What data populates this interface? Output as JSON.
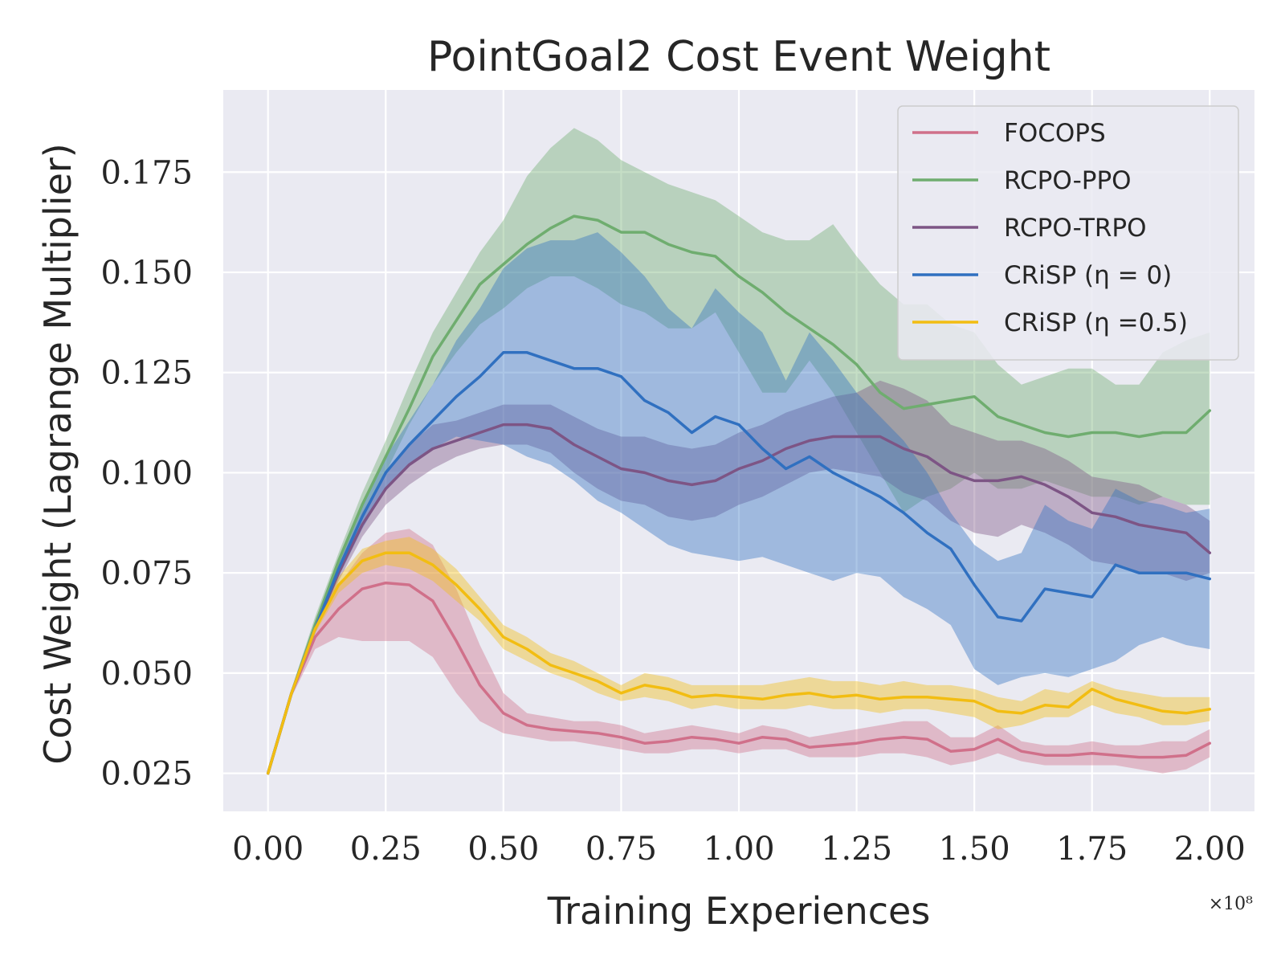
{
  "chart_data": {
    "type": "line",
    "title": "PointGoal2 Cost Event Weight",
    "xlabel": "Training Experiences",
    "ylabel": "Cost Weight (Lagrange Multiplier)",
    "x_offset_label": "×10⁸",
    "xlim": [
      -0.095,
      2.095
    ],
    "ylim": [
      0.0155,
      0.1955
    ],
    "xticks": [
      0.0,
      0.25,
      0.5,
      0.75,
      1.0,
      1.25,
      1.5,
      1.75,
      2.0
    ],
    "xtick_labels": [
      "0.00",
      "0.25",
      "0.50",
      "0.75",
      "1.00",
      "1.25",
      "1.50",
      "1.75",
      "2.00"
    ],
    "yticks": [
      0.025,
      0.05,
      0.075,
      0.1,
      0.125,
      0.15,
      0.175
    ],
    "ytick_labels": [
      "0.025",
      "0.050",
      "0.075",
      "0.100",
      "0.125",
      "0.150",
      "0.175"
    ],
    "grid": true,
    "legend_position": "top-right",
    "series": [
      {
        "name": "FOCOPS",
        "color": "#d0708a",
        "x": [
          0.0,
          0.05,
          0.1,
          0.15,
          0.2,
          0.25,
          0.3,
          0.35,
          0.4,
          0.45,
          0.5,
          0.55,
          0.6,
          0.65,
          0.7,
          0.75,
          0.8,
          0.85,
          0.9,
          0.95,
          1.0,
          1.05,
          1.1,
          1.15,
          1.2,
          1.25,
          1.3,
          1.35,
          1.4,
          1.45,
          1.5,
          1.55,
          1.6,
          1.65,
          1.7,
          1.75,
          1.8,
          1.85,
          1.9,
          1.95,
          2.0
        ],
        "y": [
          0.025,
          0.045,
          0.059,
          0.066,
          0.071,
          0.0725,
          0.072,
          0.068,
          0.058,
          0.047,
          0.04,
          0.037,
          0.036,
          0.0355,
          0.035,
          0.034,
          0.0325,
          0.033,
          0.034,
          0.0335,
          0.0325,
          0.034,
          0.0335,
          0.0315,
          0.032,
          0.0325,
          0.0335,
          0.034,
          0.0335,
          0.0305,
          0.031,
          0.0335,
          0.0305,
          0.0295,
          0.0295,
          0.03,
          0.0295,
          0.029,
          0.029,
          0.0295,
          0.0325
        ],
        "lower": [
          0.025,
          0.044,
          0.056,
          0.059,
          0.058,
          0.058,
          0.058,
          0.054,
          0.045,
          0.038,
          0.035,
          0.034,
          0.033,
          0.033,
          0.032,
          0.031,
          0.03,
          0.03,
          0.031,
          0.031,
          0.03,
          0.031,
          0.031,
          0.029,
          0.029,
          0.029,
          0.03,
          0.03,
          0.029,
          0.027,
          0.028,
          0.03,
          0.028,
          0.027,
          0.027,
          0.027,
          0.027,
          0.026,
          0.025,
          0.026,
          0.029
        ],
        "upper": [
          0.025,
          0.046,
          0.062,
          0.072,
          0.08,
          0.085,
          0.086,
          0.082,
          0.071,
          0.057,
          0.045,
          0.04,
          0.039,
          0.038,
          0.038,
          0.037,
          0.035,
          0.036,
          0.037,
          0.036,
          0.035,
          0.037,
          0.036,
          0.034,
          0.035,
          0.036,
          0.037,
          0.038,
          0.038,
          0.034,
          0.034,
          0.037,
          0.033,
          0.032,
          0.032,
          0.033,
          0.032,
          0.032,
          0.033,
          0.033,
          0.036
        ]
      },
      {
        "name": "RCPO-PPO",
        "color": "#6fad6f",
        "x": [
          0.0,
          0.05,
          0.1,
          0.15,
          0.2,
          0.25,
          0.3,
          0.35,
          0.4,
          0.45,
          0.5,
          0.55,
          0.6,
          0.65,
          0.7,
          0.75,
          0.8,
          0.85,
          0.9,
          0.95,
          1.0,
          1.05,
          1.1,
          1.15,
          1.2,
          1.25,
          1.3,
          1.35,
          1.4,
          1.45,
          1.5,
          1.55,
          1.6,
          1.65,
          1.7,
          1.75,
          1.8,
          1.85,
          1.9,
          1.95,
          2.0
        ],
        "y": [
          0.025,
          0.045,
          0.062,
          0.078,
          0.092,
          0.104,
          0.116,
          0.129,
          0.138,
          0.147,
          0.152,
          0.157,
          0.161,
          0.164,
          0.163,
          0.16,
          0.16,
          0.157,
          0.155,
          0.154,
          0.149,
          0.145,
          0.14,
          0.136,
          0.132,
          0.127,
          0.12,
          0.116,
          0.117,
          0.118,
          0.119,
          0.114,
          0.112,
          0.11,
          0.109,
          0.11,
          0.11,
          0.109,
          0.11,
          0.11,
          0.1155
        ],
        "lower": [
          0.025,
          0.045,
          0.061,
          0.076,
          0.089,
          0.1,
          0.112,
          0.122,
          0.13,
          0.137,
          0.141,
          0.146,
          0.149,
          0.149,
          0.146,
          0.142,
          0.14,
          0.136,
          0.136,
          0.14,
          0.13,
          0.12,
          0.12,
          0.128,
          0.12,
          0.11,
          0.1,
          0.09,
          0.094,
          0.096,
          0.1,
          0.096,
          0.096,
          0.098,
          0.096,
          0.094,
          0.094,
          0.092,
          0.094,
          0.092,
          0.092
        ],
        "upper": [
          0.025,
          0.046,
          0.064,
          0.08,
          0.095,
          0.108,
          0.122,
          0.135,
          0.145,
          0.155,
          0.163,
          0.174,
          0.181,
          0.186,
          0.183,
          0.178,
          0.175,
          0.172,
          0.17,
          0.168,
          0.164,
          0.16,
          0.158,
          0.158,
          0.162,
          0.154,
          0.147,
          0.142,
          0.142,
          0.137,
          0.135,
          0.127,
          0.122,
          0.124,
          0.126,
          0.126,
          0.122,
          0.122,
          0.13,
          0.133,
          0.135
        ]
      },
      {
        "name": "RCPO-TRPO",
        "color": "#7d5585",
        "x": [
          0.0,
          0.05,
          0.1,
          0.15,
          0.2,
          0.25,
          0.3,
          0.35,
          0.4,
          0.45,
          0.5,
          0.55,
          0.6,
          0.65,
          0.7,
          0.75,
          0.8,
          0.85,
          0.9,
          0.95,
          1.0,
          1.05,
          1.1,
          1.15,
          1.2,
          1.25,
          1.3,
          1.35,
          1.4,
          1.45,
          1.5,
          1.55,
          1.6,
          1.65,
          1.7,
          1.75,
          1.8,
          1.85,
          1.9,
          1.95,
          2.0
        ],
        "y": [
          0.025,
          0.045,
          0.061,
          0.075,
          0.087,
          0.096,
          0.102,
          0.106,
          0.108,
          0.11,
          0.112,
          0.112,
          0.111,
          0.107,
          0.104,
          0.101,
          0.1,
          0.098,
          0.097,
          0.098,
          0.101,
          0.103,
          0.106,
          0.108,
          0.109,
          0.109,
          0.109,
          0.106,
          0.104,
          0.1,
          0.098,
          0.098,
          0.099,
          0.097,
          0.094,
          0.09,
          0.089,
          0.087,
          0.086,
          0.085,
          0.08
        ],
        "lower": [
          0.025,
          0.045,
          0.06,
          0.073,
          0.084,
          0.092,
          0.097,
          0.101,
          0.104,
          0.106,
          0.107,
          0.107,
          0.105,
          0.1,
          0.096,
          0.093,
          0.092,
          0.089,
          0.088,
          0.089,
          0.092,
          0.094,
          0.097,
          0.1,
          0.101,
          0.1,
          0.099,
          0.095,
          0.093,
          0.088,
          0.085,
          0.084,
          0.087,
          0.085,
          0.082,
          0.078,
          0.077,
          0.075,
          0.075,
          0.073,
          0.075
        ],
        "upper": [
          0.025,
          0.046,
          0.062,
          0.077,
          0.09,
          0.1,
          0.107,
          0.112,
          0.113,
          0.115,
          0.117,
          0.117,
          0.117,
          0.114,
          0.111,
          0.109,
          0.109,
          0.107,
          0.106,
          0.107,
          0.11,
          0.112,
          0.115,
          0.117,
          0.119,
          0.12,
          0.123,
          0.121,
          0.118,
          0.112,
          0.11,
          0.108,
          0.108,
          0.106,
          0.103,
          0.099,
          0.098,
          0.097,
          0.094,
          0.092,
          0.088
        ]
      },
      {
        "name": "CRiSP (η = 0)",
        "color": "#3070c0",
        "x": [
          0.0,
          0.05,
          0.1,
          0.15,
          0.2,
          0.25,
          0.3,
          0.35,
          0.4,
          0.45,
          0.5,
          0.55,
          0.6,
          0.65,
          0.7,
          0.75,
          0.8,
          0.85,
          0.9,
          0.95,
          1.0,
          1.05,
          1.1,
          1.15,
          1.2,
          1.25,
          1.3,
          1.35,
          1.4,
          1.45,
          1.5,
          1.55,
          1.6,
          1.65,
          1.7,
          1.75,
          1.8,
          1.85,
          1.9,
          1.95,
          2.0
        ],
        "y": [
          0.025,
          0.045,
          0.061,
          0.076,
          0.089,
          0.1,
          0.107,
          0.113,
          0.119,
          0.124,
          0.13,
          0.13,
          0.128,
          0.126,
          0.126,
          0.124,
          0.118,
          0.115,
          0.11,
          0.114,
          0.112,
          0.106,
          0.101,
          0.104,
          0.1,
          0.097,
          0.094,
          0.09,
          0.085,
          0.081,
          0.072,
          0.064,
          0.063,
          0.071,
          0.07,
          0.069,
          0.077,
          0.075,
          0.075,
          0.075,
          0.0735
        ],
        "lower": [
          0.025,
          0.045,
          0.06,
          0.074,
          0.086,
          0.096,
          0.102,
          0.106,
          0.109,
          0.108,
          0.107,
          0.104,
          0.102,
          0.098,
          0.093,
          0.09,
          0.086,
          0.082,
          0.08,
          0.079,
          0.078,
          0.079,
          0.077,
          0.075,
          0.073,
          0.075,
          0.074,
          0.069,
          0.066,
          0.062,
          0.051,
          0.047,
          0.049,
          0.05,
          0.049,
          0.051,
          0.053,
          0.057,
          0.059,
          0.057,
          0.056
        ],
        "upper": [
          0.025,
          0.046,
          0.062,
          0.078,
          0.092,
          0.104,
          0.113,
          0.122,
          0.133,
          0.141,
          0.151,
          0.156,
          0.158,
          0.158,
          0.16,
          0.155,
          0.149,
          0.141,
          0.136,
          0.146,
          0.14,
          0.135,
          0.123,
          0.135,
          0.128,
          0.12,
          0.114,
          0.108,
          0.1,
          0.09,
          0.082,
          0.078,
          0.08,
          0.092,
          0.088,
          0.086,
          0.096,
          0.093,
          0.092,
          0.09,
          0.091
        ]
      },
      {
        "name": "CRiSP (η =0.5)",
        "color": "#f2bd12",
        "x": [
          0.0,
          0.05,
          0.1,
          0.15,
          0.2,
          0.25,
          0.3,
          0.35,
          0.4,
          0.45,
          0.5,
          0.55,
          0.6,
          0.65,
          0.7,
          0.75,
          0.8,
          0.85,
          0.9,
          0.95,
          1.0,
          1.05,
          1.1,
          1.15,
          1.2,
          1.25,
          1.3,
          1.35,
          1.4,
          1.45,
          1.5,
          1.55,
          1.6,
          1.65,
          1.7,
          1.75,
          1.8,
          1.85,
          1.9,
          1.95,
          2.0
        ],
        "y": [
          0.025,
          0.045,
          0.061,
          0.072,
          0.078,
          0.08,
          0.08,
          0.077,
          0.072,
          0.066,
          0.059,
          0.056,
          0.052,
          0.05,
          0.048,
          0.045,
          0.047,
          0.046,
          0.044,
          0.0445,
          0.044,
          0.0435,
          0.0445,
          0.045,
          0.044,
          0.0445,
          0.0435,
          0.044,
          0.044,
          0.0435,
          0.043,
          0.0405,
          0.04,
          0.042,
          0.0415,
          0.046,
          0.0435,
          0.042,
          0.0405,
          0.04,
          0.041
        ],
        "lower": [
          0.025,
          0.044,
          0.06,
          0.07,
          0.075,
          0.077,
          0.076,
          0.073,
          0.068,
          0.063,
          0.056,
          0.053,
          0.05,
          0.048,
          0.045,
          0.043,
          0.044,
          0.043,
          0.041,
          0.042,
          0.041,
          0.041,
          0.041,
          0.042,
          0.041,
          0.041,
          0.04,
          0.041,
          0.041,
          0.04,
          0.039,
          0.036,
          0.037,
          0.039,
          0.039,
          0.042,
          0.04,
          0.039,
          0.037,
          0.037,
          0.038
        ],
        "upper": [
          0.025,
          0.046,
          0.062,
          0.074,
          0.081,
          0.083,
          0.084,
          0.081,
          0.076,
          0.069,
          0.062,
          0.059,
          0.055,
          0.053,
          0.05,
          0.047,
          0.05,
          0.049,
          0.047,
          0.047,
          0.047,
          0.047,
          0.048,
          0.049,
          0.048,
          0.048,
          0.047,
          0.048,
          0.047,
          0.047,
          0.046,
          0.044,
          0.043,
          0.046,
          0.045,
          0.048,
          0.046,
          0.045,
          0.044,
          0.044,
          0.044
        ]
      }
    ]
  }
}
